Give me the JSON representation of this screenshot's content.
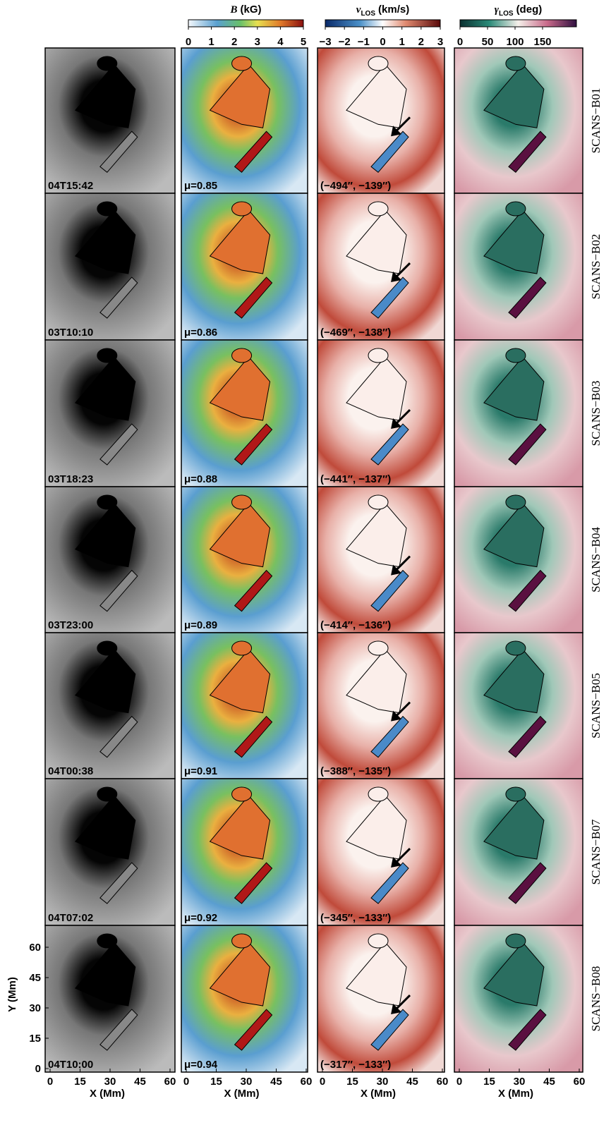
{
  "colorbars": [
    {
      "symbol": "B",
      "unit": "(kG)",
      "ticks": [
        "0",
        "1",
        "2",
        "3",
        "4",
        "5"
      ]
    },
    {
      "symbol": "v",
      "subscript": "LOS",
      "unit": "(km/s)",
      "ticks": [
        "−3",
        "−2",
        "−1",
        "0",
        "1",
        "2",
        "3"
      ]
    },
    {
      "symbol": "γ",
      "subscript": "LOS",
      "unit": "(deg)",
      "ticks": [
        "0",
        "50",
        "100",
        "150"
      ]
    }
  ],
  "rows": [
    {
      "label": "SCANS−B01",
      "time": "04T15:42",
      "mu": "μ=0.85",
      "coords": "(−494″, −139″)"
    },
    {
      "label": "SCANS−B02",
      "time": "03T10:10",
      "mu": "μ=0.86",
      "coords": "(−469″, −138″)"
    },
    {
      "label": "SCANS−B03",
      "time": "03T18:23",
      "mu": "μ=0.88",
      "coords": "(−441″, −137″)"
    },
    {
      "label": "SCANS−B04",
      "time": "03T23:00",
      "mu": "μ=0.89",
      "coords": "(−414″, −136″)"
    },
    {
      "label": "SCANS−B05",
      "time": "04T00:38",
      "mu": "μ=0.91",
      "coords": "(−388″, −135″)"
    },
    {
      "label": "SCANS−B07",
      "time": "04T07:02",
      "mu": "μ=0.92",
      "coords": "(−345″, −133″)"
    },
    {
      "label": "SCANS−B08",
      "time": "04T10:00",
      "mu": "μ=0.94",
      "coords": "(−317″, −133″)"
    }
  ],
  "axes": {
    "x_label": "X (Mm)",
    "x_ticks": [
      "0",
      "15",
      "30",
      "45",
      "60"
    ],
    "y_label": "Y (Mm)",
    "y_ticks": [
      "0",
      "15",
      "30",
      "45",
      "60"
    ]
  }
}
